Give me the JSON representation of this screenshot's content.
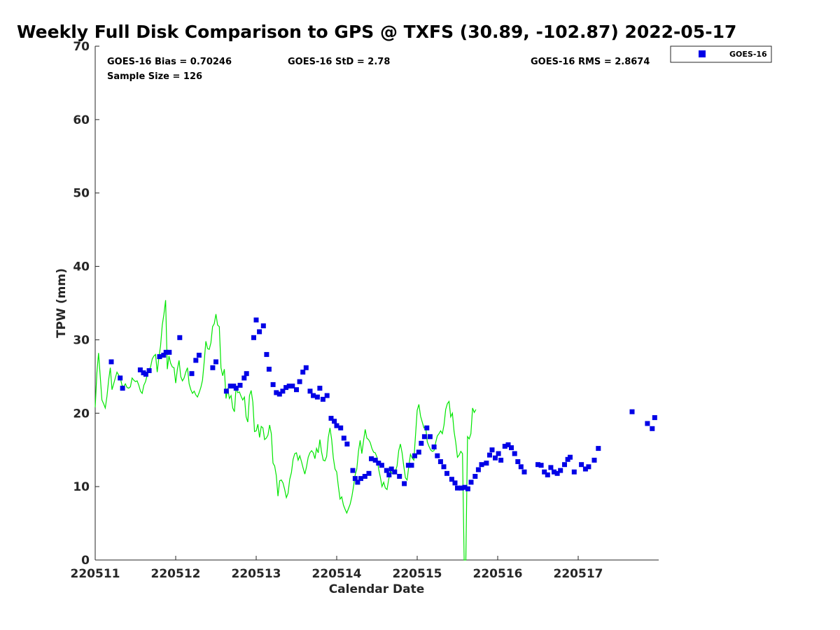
{
  "page_title": "Weekly Full Disk Comparison to GPS @ TXFS (30.89, -102.87) 2022-05-17",
  "stats": {
    "bias": "GOES-16 Bias = 0.70246",
    "std": "GOES-16 StD = 2.78",
    "rms": "GOES-16 RMS = 2.8674",
    "sample": "Sample Size = 126"
  },
  "legend": {
    "label": "GOES-16"
  },
  "colors": {
    "goes": "#0000e6",
    "gps": "#00e600",
    "axis": "#262626"
  },
  "chart_data": {
    "type": "scatter",
    "title": "Weekly Full Disk Comparison to GPS @ TXFS (30.89, -102.87) 2022-05-17",
    "xlabel": "Calendar Date",
    "ylabel": "TPW (mm)",
    "xlim": [
      0,
      7
    ],
    "ylim": [
      0,
      70
    ],
    "x_tick_values": [
      0,
      1,
      2,
      3,
      4,
      5,
      6
    ],
    "x_tick_labels": [
      "220511",
      "220512",
      "220513",
      "220514",
      "220515",
      "220516",
      "220517"
    ],
    "y_ticks": [
      0,
      10,
      20,
      30,
      40,
      50,
      60,
      70
    ],
    "legend_position": "top-right",
    "grid": false,
    "series": [
      {
        "name": "GOES-16",
        "marker": "square",
        "points": [
          [
            0.2,
            27.0
          ],
          [
            0.31,
            24.8
          ],
          [
            0.34,
            23.4
          ],
          [
            0.56,
            25.9
          ],
          [
            0.6,
            25.5
          ],
          [
            0.63,
            25.3
          ],
          [
            0.67,
            25.8
          ],
          [
            0.8,
            27.7
          ],
          [
            0.85,
            27.9
          ],
          [
            0.88,
            28.3
          ],
          [
            0.92,
            28.3
          ],
          [
            1.05,
            30.3
          ],
          [
            1.2,
            25.4
          ],
          [
            1.25,
            27.2
          ],
          [
            1.29,
            27.9
          ],
          [
            1.46,
            26.2
          ],
          [
            1.5,
            27.0
          ],
          [
            1.63,
            23.0
          ],
          [
            1.68,
            23.7
          ],
          [
            1.72,
            23.7
          ],
          [
            1.75,
            23.4
          ],
          [
            1.8,
            23.8
          ],
          [
            1.85,
            24.8
          ],
          [
            1.88,
            25.4
          ],
          [
            1.97,
            30.3
          ],
          [
            2.0,
            32.7
          ],
          [
            2.04,
            31.1
          ],
          [
            2.09,
            31.9
          ],
          [
            2.13,
            28.0
          ],
          [
            2.16,
            26.0
          ],
          [
            2.21,
            23.9
          ],
          [
            2.25,
            22.8
          ],
          [
            2.29,
            22.6
          ],
          [
            2.33,
            23.0
          ],
          [
            2.37,
            23.5
          ],
          [
            2.41,
            23.7
          ],
          [
            2.45,
            23.7
          ],
          [
            2.5,
            23.2
          ],
          [
            2.54,
            24.3
          ],
          [
            2.58,
            25.6
          ],
          [
            2.62,
            26.2
          ],
          [
            2.67,
            23.0
          ],
          [
            2.71,
            22.4
          ],
          [
            2.76,
            22.2
          ],
          [
            2.79,
            23.4
          ],
          [
            2.83,
            21.9
          ],
          [
            2.88,
            22.4
          ],
          [
            2.93,
            19.3
          ],
          [
            2.97,
            18.9
          ],
          [
            3.0,
            18.3
          ],
          [
            3.05,
            18.0
          ],
          [
            3.09,
            16.6
          ],
          [
            3.13,
            15.8
          ],
          [
            3.2,
            12.2
          ],
          [
            3.23,
            11.1
          ],
          [
            3.26,
            10.6
          ],
          [
            3.3,
            11.1
          ],
          [
            3.35,
            11.4
          ],
          [
            3.4,
            11.8
          ],
          [
            3.43,
            13.8
          ],
          [
            3.48,
            13.6
          ],
          [
            3.52,
            13.2
          ],
          [
            3.56,
            12.9
          ],
          [
            3.62,
            12.2
          ],
          [
            3.65,
            11.6
          ],
          [
            3.68,
            12.4
          ],
          [
            3.72,
            12.0
          ],
          [
            3.78,
            11.4
          ],
          [
            3.84,
            10.4
          ],
          [
            3.89,
            12.9
          ],
          [
            3.93,
            12.9
          ],
          [
            3.97,
            14.2
          ],
          [
            4.02,
            14.7
          ],
          [
            4.05,
            15.9
          ],
          [
            4.09,
            16.8
          ],
          [
            4.12,
            18.0
          ],
          [
            4.16,
            16.8
          ],
          [
            4.21,
            15.4
          ],
          [
            4.25,
            14.2
          ],
          [
            4.29,
            13.4
          ],
          [
            4.33,
            12.7
          ],
          [
            4.37,
            11.8
          ],
          [
            4.43,
            11.0
          ],
          [
            4.47,
            10.5
          ],
          [
            4.5,
            9.8
          ],
          [
            4.55,
            9.8
          ],
          [
            4.59,
            9.9
          ],
          [
            4.63,
            9.7
          ],
          [
            4.67,
            10.6
          ],
          [
            4.72,
            11.4
          ],
          [
            4.76,
            12.3
          ],
          [
            4.8,
            13.0
          ],
          [
            4.86,
            13.2
          ],
          [
            4.9,
            14.3
          ],
          [
            4.93,
            15.0
          ],
          [
            4.97,
            13.9
          ],
          [
            5.01,
            14.5
          ],
          [
            5.04,
            13.6
          ],
          [
            5.09,
            15.5
          ],
          [
            5.13,
            15.7
          ],
          [
            5.17,
            15.3
          ],
          [
            5.21,
            14.5
          ],
          [
            5.25,
            13.4
          ],
          [
            5.29,
            12.7
          ],
          [
            5.33,
            12.0
          ],
          [
            5.5,
            13.0
          ],
          [
            5.54,
            12.9
          ],
          [
            5.58,
            12.0
          ],
          [
            5.62,
            11.6
          ],
          [
            5.66,
            12.6
          ],
          [
            5.7,
            12.0
          ],
          [
            5.74,
            11.8
          ],
          [
            5.78,
            12.2
          ],
          [
            5.83,
            13.0
          ],
          [
            5.87,
            13.7
          ],
          [
            5.9,
            14.0
          ],
          [
            5.95,
            12.0
          ],
          [
            6.04,
            13.0
          ],
          [
            6.09,
            12.4
          ],
          [
            6.13,
            12.7
          ],
          [
            6.2,
            13.6
          ],
          [
            6.25,
            15.2
          ],
          [
            6.67,
            20.2
          ],
          [
            6.86,
            18.6
          ],
          [
            6.92,
            17.9
          ],
          [
            6.95,
            19.4
          ]
        ]
      },
      {
        "name": "",
        "type": "line",
        "x_start": 0,
        "x_step": 0.0208333,
        "y": [
          20.8,
          25.5,
          28.2,
          25.0,
          21.8,
          21.3,
          20.7,
          22.3,
          24.5,
          26.2,
          23.2,
          24.0,
          24.8,
          25.6,
          25.2,
          24.8,
          23.8,
          23.6,
          24.0,
          23.5,
          23.4,
          23.6,
          24.8,
          24.5,
          24.3,
          24.4,
          23.8,
          23.0,
          22.7,
          23.8,
          24.3,
          25.2,
          25.8,
          26.3,
          27.4,
          27.8,
          28.0,
          25.6,
          27.6,
          29.2,
          32.0,
          33.5,
          35.4,
          26.0,
          27.8,
          26.8,
          26.3,
          26.2,
          24.1,
          26.0,
          27.2,
          25.0,
          24.4,
          24.8,
          25.6,
          26.2,
          24.0,
          23.2,
          22.7,
          23.0,
          22.5,
          22.2,
          22.8,
          23.5,
          24.5,
          27.0,
          29.8,
          28.8,
          28.7,
          29.6,
          31.8,
          32.2,
          33.5,
          32.0,
          31.8,
          26.2,
          25.1,
          26.0,
          22.0,
          23.4,
          22.0,
          22.4,
          20.7,
          20.2,
          23.5,
          22.8,
          22.9,
          22.3,
          21.8,
          22.2,
          19.5,
          18.8,
          22.4,
          23.1,
          21.5,
          17.5,
          17.6,
          18.5,
          16.7,
          18.2,
          18.0,
          16.4,
          16.6,
          17.0,
          18.4,
          17.2,
          13.2,
          12.8,
          11.5,
          8.7,
          10.8,
          10.9,
          10.5,
          9.6,
          8.5,
          9.1,
          11.0,
          11.9,
          13.7,
          14.5,
          14.6,
          13.6,
          14.2,
          13.4,
          12.5,
          11.7,
          12.7,
          14.0,
          14.6,
          14.9,
          14.6,
          13.8,
          15.2,
          14.6,
          16.4,
          14.7,
          13.6,
          13.5,
          14.1,
          16.7,
          18.0,
          16.4,
          13.9,
          12.4,
          12.0,
          10.0,
          8.3,
          8.6,
          7.5,
          6.9,
          6.4,
          7.0,
          7.6,
          8.6,
          10.0,
          11.6,
          12.4,
          14.8,
          16.3,
          14.5,
          16.2,
          17.8,
          16.6,
          16.4,
          16.0,
          15.2,
          14.7,
          14.6,
          14.0,
          12.4,
          11.3,
          10.0,
          10.6,
          9.8,
          9.6,
          11.0,
          12.1,
          11.8,
          12.0,
          12.1,
          12.8,
          14.9,
          15.8,
          14.6,
          12.8,
          11.2,
          10.9,
          12.8,
          14.4,
          13.9,
          13.6,
          17.0,
          20.4,
          21.2,
          19.6,
          18.8,
          18.0,
          18.2,
          16.1,
          15.5,
          15.0,
          14.8,
          14.9,
          16.0,
          16.9,
          17.2,
          17.6,
          17.2,
          18.4,
          20.5,
          21.3,
          21.6,
          19.5,
          20.0,
          17.5,
          16.0,
          14.0,
          14.3,
          14.8,
          14.5,
          0.0,
          0.0,
          16.8,
          16.5,
          17.2,
          20.7,
          20.1,
          20.5
        ]
      }
    ]
  }
}
